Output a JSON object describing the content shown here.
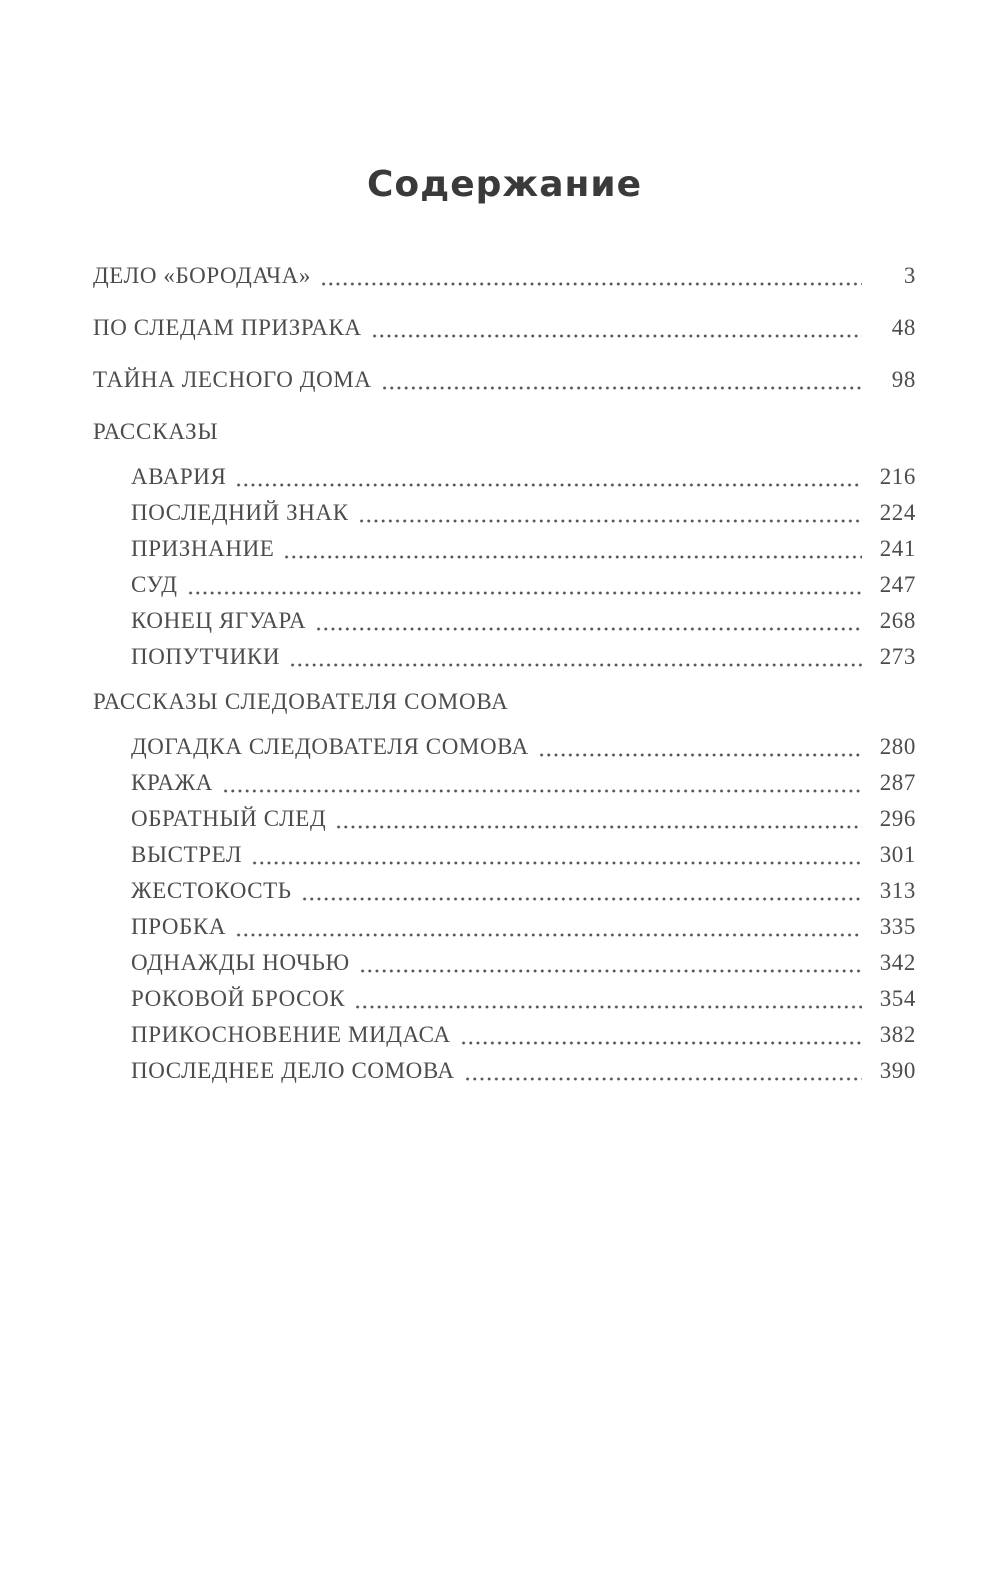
{
  "page": {
    "title": "Содержание"
  },
  "colors": {
    "background": "#ffffff",
    "title_text": "#3a3a3a",
    "body_text": "#4c4c4c",
    "dot_leader": "#555555"
  },
  "toc": {
    "entries": [
      {
        "label": "ДЕЛО «БОРОДАЧА»",
        "page": "3",
        "level": "top"
      },
      {
        "label": "ПО СЛЕДАМ ПРИЗРАКА",
        "page": "48",
        "level": "top"
      },
      {
        "label": "ТАЙНА ЛЕСНОГО ДОМА",
        "page": "98",
        "level": "top"
      },
      {
        "label": "РАССКАЗЫ",
        "page": "",
        "level": "section-heading"
      },
      {
        "label": "АВАРИЯ",
        "page": "216",
        "level": "sub"
      },
      {
        "label": "ПОСЛЕДНИЙ ЗНАК",
        "page": "224",
        "level": "sub"
      },
      {
        "label": "ПРИЗНАНИЕ",
        "page": "241",
        "level": "sub"
      },
      {
        "label": "СУД",
        "page": "247",
        "level": "sub"
      },
      {
        "label": "КОНЕЦ ЯГУАРА",
        "page": "268",
        "level": "sub"
      },
      {
        "label": "ПОПУТЧИКИ",
        "page": "273",
        "level": "sub"
      },
      {
        "label": "РАССКАЗЫ СЛЕДОВАТЕЛЯ СОМОВА",
        "page": "",
        "level": "section-heading"
      },
      {
        "label": "ДОГАДКА СЛЕДОВАТЕЛЯ СОМОВА",
        "page": "280",
        "level": "sub"
      },
      {
        "label": "КРАЖА",
        "page": "287",
        "level": "sub"
      },
      {
        "label": "ОБРАТНЫЙ СЛЕД",
        "page": "296",
        "level": "sub"
      },
      {
        "label": "ВЫСТРЕЛ",
        "page": "301",
        "level": "sub"
      },
      {
        "label": "ЖЕСТОКОСТЬ",
        "page": "313",
        "level": "sub"
      },
      {
        "label": "ПРОБКА",
        "page": "335",
        "level": "sub"
      },
      {
        "label": "ОДНАЖДЫ НОЧЬЮ",
        "page": "342",
        "level": "sub"
      },
      {
        "label": "РОКОВОЙ БРОСОК",
        "page": "354",
        "level": "sub"
      },
      {
        "label": "ПРИКОСНОВЕНИЕ МИДАСА",
        "page": "382",
        "level": "sub"
      },
      {
        "label": "ПОСЛЕДНЕЕ ДЕЛО СОМОВА",
        "page": "390",
        "level": "sub"
      }
    ]
  }
}
